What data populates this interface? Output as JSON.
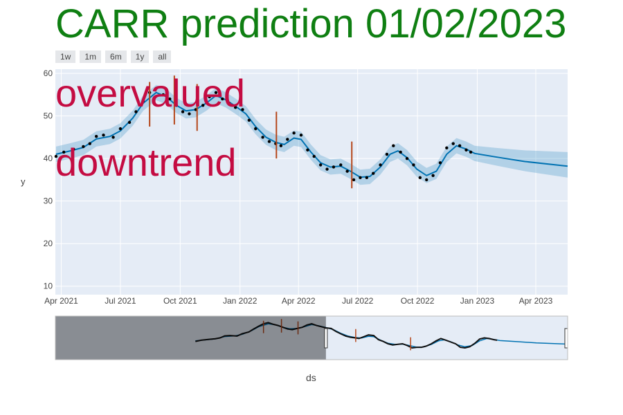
{
  "title": "CARR prediction 01/02/2023",
  "range_buttons": [
    "1w",
    "1m",
    "6m",
    "1y",
    "all"
  ],
  "annotations": [
    "overvalued",
    "downtrend"
  ],
  "chart_data": {
    "type": "line",
    "title": "CARR prediction 01/02/2023",
    "xlabel": "ds",
    "ylabel": "y",
    "xlim": [
      "2021-03-23",
      "2023-05-20"
    ],
    "ylim": [
      8,
      61
    ],
    "yticks": [
      10,
      20,
      30,
      40,
      50,
      60
    ],
    "xticks": [
      {
        "date": "2021-04-01",
        "label": "Apr 2021"
      },
      {
        "date": "2021-07-01",
        "label": "Jul 2021"
      },
      {
        "date": "2021-10-01",
        "label": "Oct 2021"
      },
      {
        "date": "2022-01-01",
        "label": "Jan 2022"
      },
      {
        "date": "2022-04-01",
        "label": "Apr 2022"
      },
      {
        "date": "2022-07-01",
        "label": "Jul 2022"
      },
      {
        "date": "2022-10-01",
        "label": "Oct 2022"
      },
      {
        "date": "2023-01-01",
        "label": "Jan 2023"
      },
      {
        "date": "2023-04-01",
        "label": "Apr 2023"
      }
    ],
    "grid": true,
    "series": [
      {
        "role": "observed",
        "style": "markers",
        "color": "#000000",
        "points": [
          [
            "2021-03-24",
            40.5
          ],
          [
            "2021-04-05",
            41.5
          ],
          [
            "2021-04-20",
            42.2
          ],
          [
            "2021-05-05",
            42.8
          ],
          [
            "2021-05-15",
            43.5
          ],
          [
            "2021-05-25",
            45.2
          ],
          [
            "2021-06-05",
            45.5
          ],
          [
            "2021-06-20",
            45.0
          ],
          [
            "2021-07-01",
            47.0
          ],
          [
            "2021-07-15",
            48.5
          ],
          [
            "2021-07-25",
            51.0
          ],
          [
            "2021-08-05",
            53.5
          ],
          [
            "2021-08-15",
            55.5
          ],
          [
            "2021-08-25",
            56.5
          ],
          [
            "2021-09-05",
            55.0
          ],
          [
            "2021-09-15",
            54.0
          ],
          [
            "2021-09-25",
            52.5
          ],
          [
            "2021-10-05",
            51.0
          ],
          [
            "2021-10-15",
            50.5
          ],
          [
            "2021-10-25",
            51.5
          ],
          [
            "2021-11-05",
            52.5
          ],
          [
            "2021-11-15",
            54.5
          ],
          [
            "2021-11-25",
            55.5
          ],
          [
            "2021-12-05",
            54.0
          ],
          [
            "2021-12-15",
            53.0
          ],
          [
            "2021-12-25",
            52.0
          ],
          [
            "2022-01-05",
            51.5
          ],
          [
            "2022-01-15",
            49.0
          ],
          [
            "2022-01-25",
            47.0
          ],
          [
            "2022-02-05",
            45.0
          ],
          [
            "2022-02-15",
            44.0
          ],
          [
            "2022-02-25",
            43.5
          ],
          [
            "2022-03-05",
            43.0
          ],
          [
            "2022-03-15",
            44.5
          ],
          [
            "2022-03-25",
            46.0
          ],
          [
            "2022-04-05",
            45.5
          ],
          [
            "2022-04-15",
            42.0
          ],
          [
            "2022-04-25",
            40.5
          ],
          [
            "2022-05-05",
            38.5
          ],
          [
            "2022-05-15",
            37.5
          ],
          [
            "2022-05-25",
            38.0
          ],
          [
            "2022-06-05",
            38.5
          ],
          [
            "2022-06-15",
            37.0
          ],
          [
            "2022-06-25",
            35.0
          ],
          [
            "2022-07-05",
            35.5
          ],
          [
            "2022-07-15",
            35.5
          ],
          [
            "2022-07-25",
            36.5
          ],
          [
            "2022-08-05",
            38.5
          ],
          [
            "2022-08-15",
            41.0
          ],
          [
            "2022-08-25",
            43.0
          ],
          [
            "2022-09-05",
            41.5
          ],
          [
            "2022-09-15",
            40.0
          ],
          [
            "2022-09-25",
            38.5
          ],
          [
            "2022-10-05",
            35.5
          ],
          [
            "2022-10-15",
            35.0
          ],
          [
            "2022-10-25",
            36.0
          ],
          [
            "2022-11-05",
            39.0
          ],
          [
            "2022-11-15",
            42.5
          ],
          [
            "2022-11-25",
            43.5
          ],
          [
            "2022-12-05",
            43.0
          ],
          [
            "2022-12-15",
            42.0
          ],
          [
            "2022-12-22",
            41.5
          ]
        ]
      },
      {
        "role": "forecast",
        "style": "line",
        "color": "#0072b2",
        "points": [
          [
            "2021-03-24",
            41.0
          ],
          [
            "2021-04-15",
            41.8
          ],
          [
            "2021-05-05",
            42.6
          ],
          [
            "2021-05-25",
            44.6
          ],
          [
            "2021-06-15",
            45.2
          ],
          [
            "2021-07-01",
            46.5
          ],
          [
            "2021-07-20",
            49.5
          ],
          [
            "2021-08-05",
            53.0
          ],
          [
            "2021-08-25",
            55.5
          ],
          [
            "2021-09-10",
            54.5
          ],
          [
            "2021-09-25",
            52.5
          ],
          [
            "2021-10-10",
            51.2
          ],
          [
            "2021-10-25",
            51.5
          ],
          [
            "2021-11-10",
            53.0
          ],
          [
            "2021-11-25",
            54.8
          ],
          [
            "2021-12-10",
            53.8
          ],
          [
            "2021-12-25",
            52.3
          ],
          [
            "2022-01-10",
            50.5
          ],
          [
            "2022-01-25",
            47.5
          ],
          [
            "2022-02-10",
            45.0
          ],
          [
            "2022-02-25",
            43.8
          ],
          [
            "2022-03-10",
            43.3
          ],
          [
            "2022-03-25",
            44.8
          ],
          [
            "2022-04-05",
            44.5
          ],
          [
            "2022-04-20",
            41.5
          ],
          [
            "2022-05-05",
            39.0
          ],
          [
            "2022-05-20",
            38.0
          ],
          [
            "2022-06-05",
            38.2
          ],
          [
            "2022-06-20",
            37.0
          ],
          [
            "2022-07-05",
            35.6
          ],
          [
            "2022-07-20",
            35.8
          ],
          [
            "2022-08-05",
            38.0
          ],
          [
            "2022-08-20",
            41.0
          ],
          [
            "2022-09-01",
            41.8
          ],
          [
            "2022-09-15",
            40.2
          ],
          [
            "2022-09-30",
            37.5
          ],
          [
            "2022-10-15",
            36.0
          ],
          [
            "2022-10-30",
            37.0
          ],
          [
            "2022-11-15",
            41.0
          ],
          [
            "2022-11-30",
            43.0
          ],
          [
            "2022-12-15",
            42.2
          ],
          [
            "2022-12-28",
            41.2
          ],
          [
            "2023-02-01",
            40.3
          ],
          [
            "2023-03-15",
            39.3
          ],
          [
            "2023-05-20",
            38.2
          ]
        ],
        "band_halfwidth_history": 1.8,
        "band_end": [
          "2023-05-20",
          35.5,
          41.5
        ]
      }
    ],
    "changepoints": {
      "color": "#b5461a",
      "items": [
        {
          "date": "2021-08-15",
          "low": 47.5,
          "high": 58.0
        },
        {
          "date": "2021-09-22",
          "low": 48.0,
          "high": 59.5
        },
        {
          "date": "2021-10-27",
          "low": 46.5,
          "high": 57.5
        },
        {
          "date": "2022-02-26",
          "low": 40.0,
          "high": 51.0
        },
        {
          "date": "2022-06-22",
          "low": 33.0,
          "high": 44.0
        }
      ]
    },
    "rangeslider": {
      "visible": true,
      "selected_start": "2021-12-25",
      "selected_end": "2023-05-20",
      "full_start": "2020-06-01",
      "full_end": "2023-05-20"
    }
  }
}
